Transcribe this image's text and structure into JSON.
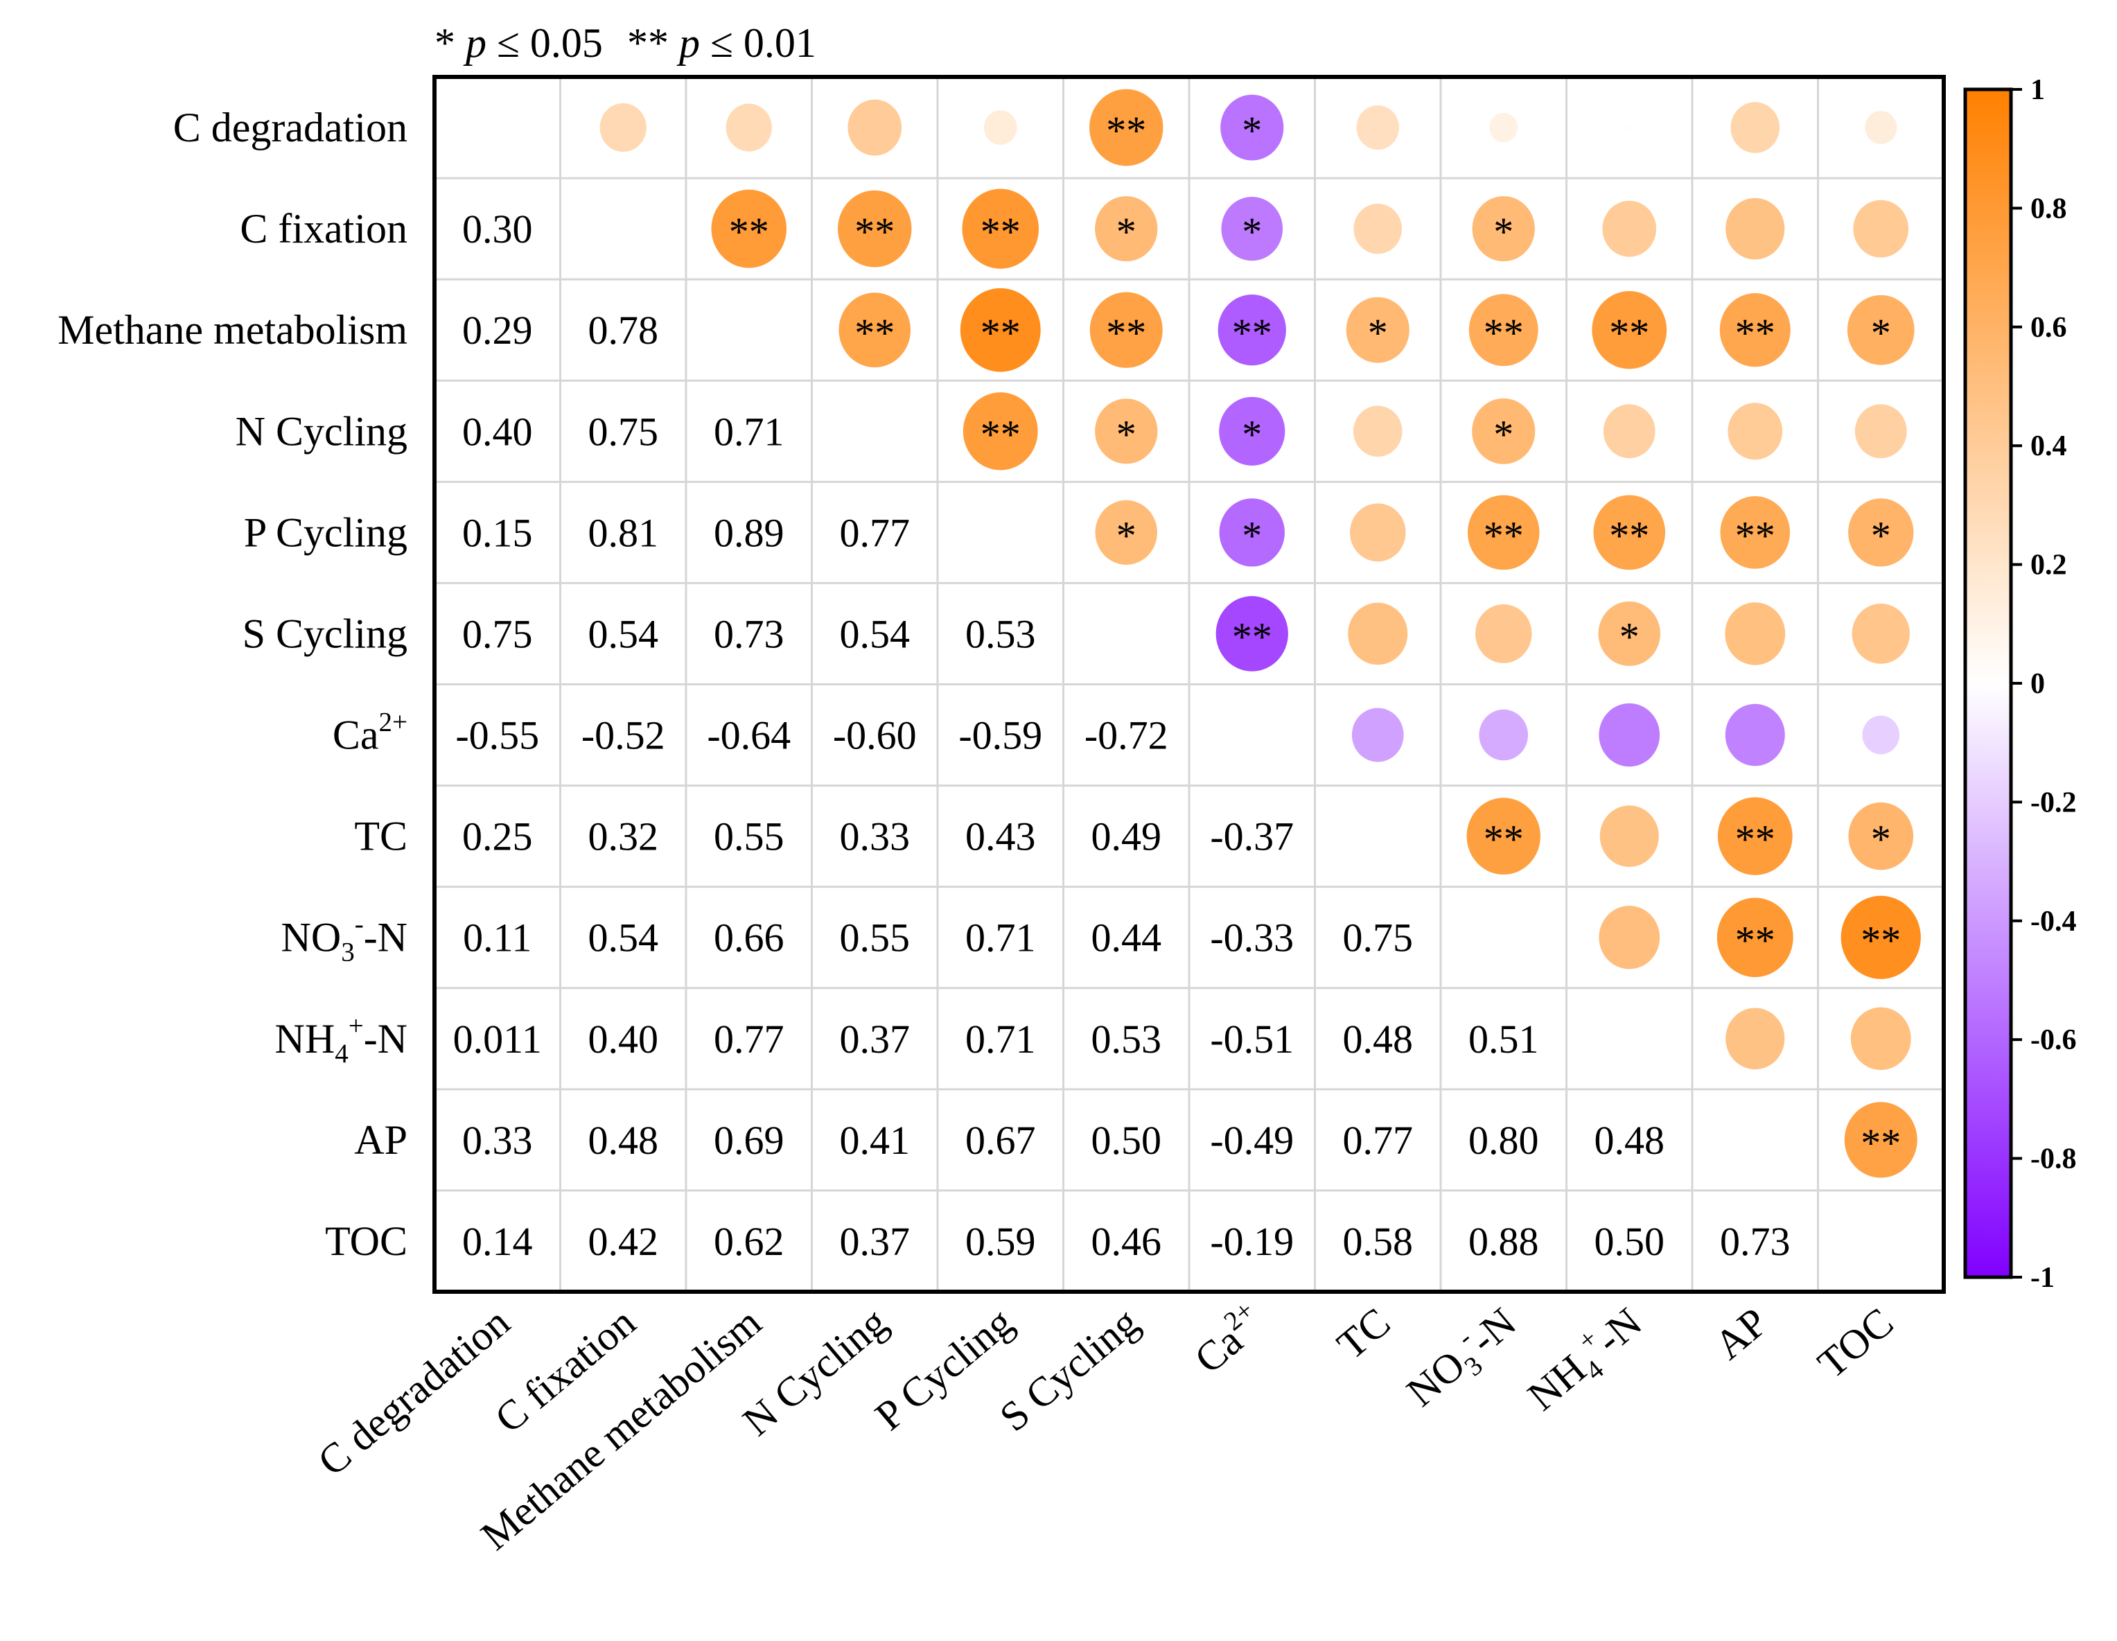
{
  "chart_data": {
    "type": "heatmap",
    "subtype": "correlation-matrix",
    "legend_note": {
      "one_star": "*",
      "p1": "p",
      "le1": "≤ 0.05",
      "two_star": "**",
      "p2": "p",
      "le2": "≤ 0.01"
    },
    "variables": [
      {
        "base": "C degradation"
      },
      {
        "base": "C fixation"
      },
      {
        "base": "Methane metabolism"
      },
      {
        "base": "N Cycling"
      },
      {
        "base": "P Cycling"
      },
      {
        "base": "S Cycling"
      },
      {
        "base": "Ca",
        "sup": "2+"
      },
      {
        "base": "TC"
      },
      {
        "base": "NO",
        "sub": "3",
        "sup": "-",
        "tail": "-N"
      },
      {
        "base": "NH",
        "sub": "4",
        "sup": "+",
        "tail": "-N"
      },
      {
        "base": "AP"
      },
      {
        "base": "TOC"
      }
    ],
    "lower_triangle_labels": [
      [],
      [
        "0.30"
      ],
      [
        "0.29",
        "0.78"
      ],
      [
        "0.40",
        "0.75",
        "0.71"
      ],
      [
        "0.15",
        "0.81",
        "0.89",
        "0.77"
      ],
      [
        "0.75",
        "0.54",
        "0.73",
        "0.54",
        "0.53"
      ],
      [
        "-0.55",
        "-0.52",
        "-0.64",
        "-0.60",
        "-0.59",
        "-0.72"
      ],
      [
        "0.25",
        "0.32",
        "0.55",
        "0.33",
        "0.43",
        "0.49",
        "-0.37"
      ],
      [
        "0.11",
        "0.54",
        "0.66",
        "0.55",
        "0.71",
        "0.44",
        "-0.33",
        "0.75"
      ],
      [
        "0.011",
        "0.40",
        "0.77",
        "0.37",
        "0.71",
        "0.53",
        "-0.51",
        "0.48",
        "0.51"
      ],
      [
        "0.33",
        "0.48",
        "0.69",
        "0.41",
        "0.67",
        "0.50",
        "-0.49",
        "0.77",
        "0.80",
        "0.48"
      ],
      [
        "0.14",
        "0.42",
        "0.62",
        "0.37",
        "0.59",
        "0.46",
        "-0.19",
        "0.58",
        "0.88",
        "0.50",
        "0.73"
      ]
    ],
    "significance_upper": [
      [
        "",
        "",
        "",
        "",
        "",
        "**",
        "*",
        "",
        "",
        "",
        "",
        ""
      ],
      [
        "",
        "",
        "**",
        "**",
        "**",
        "*",
        "*",
        "",
        "*",
        "",
        "",
        ""
      ],
      [
        "",
        "",
        "",
        "**",
        "**",
        "**",
        "**",
        "*",
        "**",
        "**",
        "**",
        "*"
      ],
      [
        "",
        "",
        "",
        "",
        "**",
        "*",
        "*",
        "",
        "*",
        "",
        "",
        ""
      ],
      [
        "",
        "",
        "",
        "",
        "",
        "*",
        "*",
        "",
        "**",
        "**",
        "**",
        "*"
      ],
      [
        "",
        "",
        "",
        "",
        "",
        "",
        "**",
        "",
        "",
        "*",
        "",
        ""
      ],
      [
        "",
        "",
        "",
        "",
        "",
        "",
        "",
        "",
        "",
        "",
        "",
        ""
      ],
      [
        "",
        "",
        "",
        "",
        "",
        "",
        "",
        "",
        "**",
        "",
        "**",
        "*"
      ],
      [
        "",
        "",
        "",
        "",
        "",
        "",
        "",
        "",
        "",
        "",
        "**",
        "**"
      ],
      [
        "",
        "",
        "",
        "",
        "",
        "",
        "",
        "",
        "",
        "",
        "",
        ""
      ],
      [
        "",
        "",
        "",
        "",
        "",
        "",
        "",
        "",
        "",
        "",
        "",
        "**"
      ],
      [
        "",
        "",
        "",
        "",
        "",
        "",
        "",
        "",
        "",
        "",
        "",
        ""
      ]
    ],
    "colorbar": {
      "range": [
        -1,
        1
      ],
      "ticks": [
        "1",
        "0.8",
        "0.6",
        "0.4",
        "0.2",
        "0",
        "-0.2",
        "-0.4",
        "-0.6",
        "-0.8",
        "-1"
      ],
      "tick_values": [
        1,
        0.8,
        0.6,
        0.4,
        0.2,
        0,
        -0.2,
        -0.4,
        -0.6,
        -0.8,
        -1
      ],
      "high_color": "#FF8000",
      "mid_color": "#FFFFFF",
      "low_color": "#8000FF",
      "placement": "right"
    },
    "grid": true
  }
}
